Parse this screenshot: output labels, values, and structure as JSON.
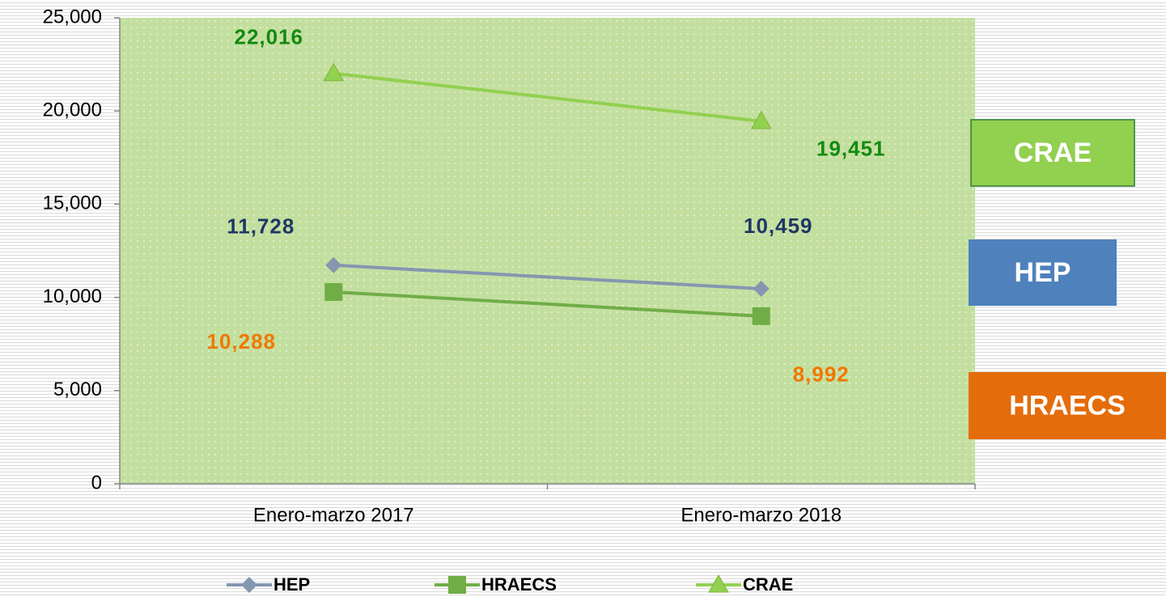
{
  "chart_data": {
    "type": "line",
    "categories": [
      "Enero-marzo 2017",
      "Enero-marzo 2018"
    ],
    "series": [
      {
        "name": "HEP",
        "color": "#8496b0",
        "label_color": "#1f3864",
        "marker": "diamond",
        "values": [
          11728,
          10459
        ],
        "value_labels": [
          "11,728",
          "10,459"
        ]
      },
      {
        "name": "HRAECS",
        "color": "#70ad47",
        "label_color": "#f07800",
        "marker": "square",
        "values": [
          10288,
          8992
        ],
        "value_labels": [
          "10,288",
          "8,992"
        ]
      },
      {
        "name": "CRAE",
        "color": "#92d050",
        "label_color": "#138a10",
        "marker": "triangle",
        "values": [
          22016,
          19451
        ],
        "value_labels": [
          "22,016",
          "19,451"
        ]
      }
    ],
    "ylim": [
      0,
      25000
    ],
    "yticks": [
      0,
      {
        "value": 5000,
        "label": "5,000"
      },
      {
        "value": 10000,
        "label": "10,000"
      },
      {
        "value": 15000,
        "label": "15,000"
      },
      {
        "value": 20000,
        "label": "20,000"
      },
      {
        "value": 25000,
        "label": "25,000"
      }
    ],
    "box_colors": [
      "#4f81bd",
      "#e46c0a",
      "#92d050"
    ]
  }
}
